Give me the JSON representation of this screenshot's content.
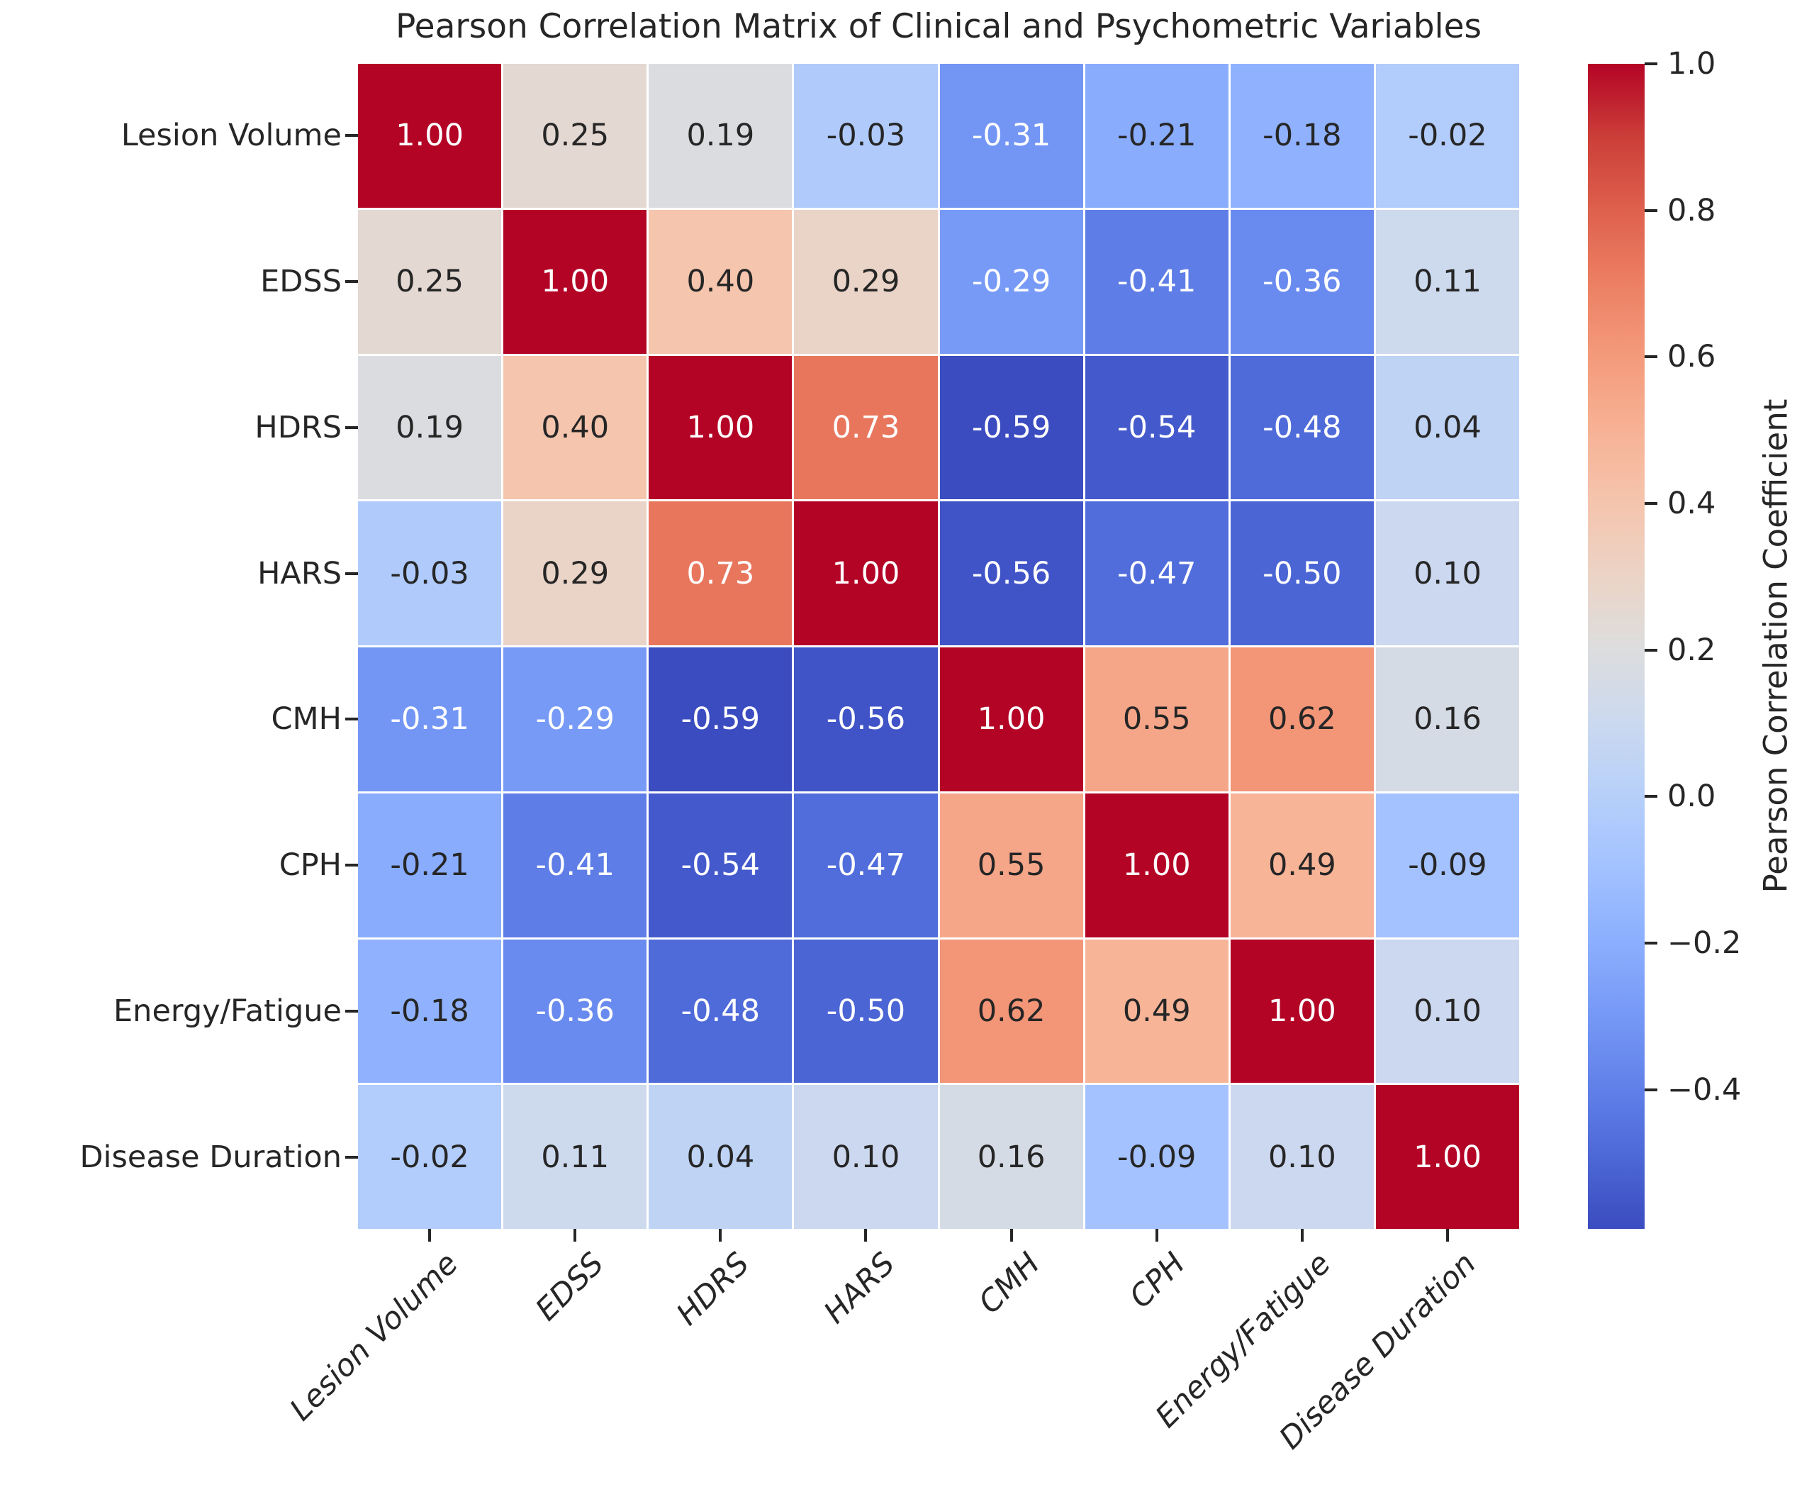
{
  "title": "Pearson Correlation Matrix of Clinical and Psychometric Variables",
  "chart_data": {
    "type": "heatmap",
    "variables": [
      "Lesion Volume",
      "EDSS",
      "HDRS",
      "HARS",
      "CMH",
      "CPH",
      "Energy/Fatigue",
      "Disease Duration"
    ],
    "matrix": [
      [
        1.0,
        0.25,
        0.19,
        -0.03,
        -0.31,
        -0.21,
        -0.18,
        -0.02
      ],
      [
        0.25,
        1.0,
        0.4,
        0.29,
        -0.29,
        -0.41,
        -0.36,
        0.11
      ],
      [
        0.19,
        0.4,
        1.0,
        0.73,
        -0.59,
        -0.54,
        -0.48,
        0.04
      ],
      [
        -0.03,
        0.29,
        0.73,
        1.0,
        -0.56,
        -0.47,
        -0.5,
        0.1
      ],
      [
        -0.31,
        -0.29,
        -0.59,
        -0.56,
        1.0,
        0.55,
        0.62,
        0.16
      ],
      [
        -0.21,
        -0.41,
        -0.54,
        -0.47,
        0.55,
        1.0,
        0.49,
        -0.09
      ],
      [
        -0.18,
        -0.36,
        -0.48,
        -0.5,
        0.62,
        0.49,
        1.0,
        0.1
      ],
      [
        -0.02,
        0.11,
        0.04,
        0.1,
        0.16,
        -0.09,
        0.1,
        1.0
      ]
    ],
    "value_format": ".2f",
    "grid": "white lines between cells",
    "legend_position": "right colorbar",
    "colorbar": {
      "label": "Pearson Correlation Coefficient",
      "ticks": [
        1.0,
        0.8,
        0.6,
        0.4,
        0.2,
        0.0,
        -0.2,
        -0.4
      ],
      "vmin": -0.59,
      "vmax": 1.0
    },
    "colormap": {
      "name": "coolwarm",
      "anchors": [
        "#3b4cc0",
        "#4d68d7",
        "#6282ea",
        "#779af7",
        "#8db0fe",
        "#a3c2ff",
        "#b8d0f9",
        "#ccd9ee",
        "#dddddd",
        "#ecd3c5",
        "#f5c4ad",
        "#f7b194",
        "#f49a7b",
        "#ec7f63",
        "#de604d",
        "#cb3e38",
        "#b40426"
      ]
    },
    "annotation_colors": {
      "dark": "#262626",
      "light": "#ffffff"
    },
    "background_color": "#ffffff"
  }
}
